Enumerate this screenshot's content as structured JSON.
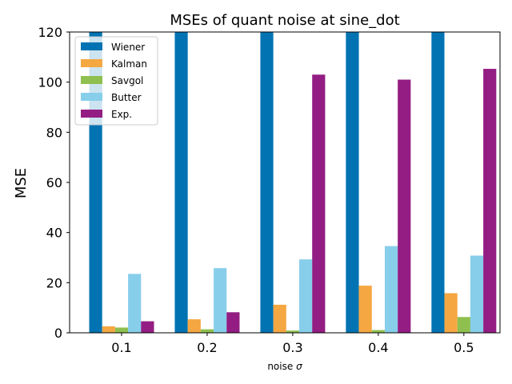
{
  "chart_data": {
    "type": "bar",
    "title": "MSEs of quant noise at sine_dot",
    "xlabel_text": "noise ",
    "xlabel_symbol": "σ",
    "ylabel": "MSE",
    "categories": [
      "0.1",
      "0.2",
      "0.3",
      "0.4",
      "0.5"
    ],
    "ylim": [
      0,
      120
    ],
    "yticks": [
      "0",
      "20",
      "40",
      "60",
      "80",
      "100",
      "120"
    ],
    "legend_position": "top-left",
    "grid": false,
    "series": [
      {
        "name": "Wiener",
        "color": "#0173b2",
        "values": [
          120,
          120,
          120,
          120,
          120
        ]
      },
      {
        "name": "Kalman",
        "color": "#f5a742",
        "values": [
          2.6,
          5.4,
          11.2,
          18.8,
          15.8
        ]
      },
      {
        "name": "Savgol",
        "color": "#8fc04f",
        "values": [
          2.1,
          1.4,
          0.9,
          1.1,
          6.3
        ]
      },
      {
        "name": "Butter",
        "color": "#87ceeb",
        "values": [
          23.5,
          25.8,
          29.3,
          34.6,
          30.8
        ]
      },
      {
        "name": "Exp.",
        "color": "#931d83",
        "values": [
          4.6,
          8.2,
          103.0,
          101.0,
          105.3
        ]
      }
    ]
  }
}
